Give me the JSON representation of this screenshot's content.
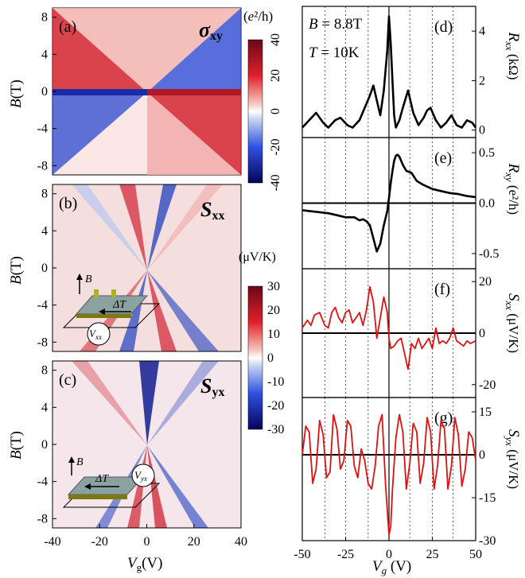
{
  "left": {
    "xlabel_main": "V",
    "xlabel_sub": "g",
    "xlabel_unit": "(V)",
    "ylabel_main": "B",
    "ylabel_unit": "(T)",
    "ylabel_unit_c": "(T)",
    "xticks": [
      "-40",
      "-20",
      "0",
      "20",
      "40"
    ],
    "yticks": [
      "8",
      "4",
      "0",
      "-4",
      "-8"
    ],
    "panels": [
      {
        "label": "(a)",
        "title_main": "σ",
        "title_sub": "xy"
      },
      {
        "label": "(b)",
        "title_main": "S",
        "title_sub": "xx"
      },
      {
        "label": "(c)",
        "title_main": "S",
        "title_sub": "yx"
      }
    ],
    "colorbar_a": {
      "unit_open": "(",
      "unit_e": "e",
      "unit_rest": "²/h)",
      "ticks": [
        "40",
        "20",
        "0",
        "-20",
        "-40"
      ]
    },
    "colorbar_bc": {
      "unit": "(μV/K)",
      "ticks": [
        "30",
        "20",
        "10",
        "0",
        "-10",
        "-20",
        "-30"
      ]
    },
    "inset_b": {
      "b": "B",
      "dt": "ΔT",
      "v": "V",
      "vsub": "xx"
    },
    "inset_c": {
      "b": "B",
      "dt": "ΔT",
      "v": "V",
      "vsub": "yx"
    }
  },
  "right": {
    "annot_B": "B",
    "annot_B_val": " = 8.8T",
    "annot_T": "T",
    "annot_T_val": " = 10K",
    "xticks": [
      "-50",
      "-25",
      "0",
      "25",
      "50"
    ],
    "xlabel_main": "V",
    "xlabel_sub": "g",
    "xlabel_unit": " (V)",
    "panels": [
      {
        "label": "(d)",
        "ylab_main": "R",
        "ylab_sub": "xx",
        "ylab_unit": " (kΩ)",
        "ticks": [
          "4",
          "2",
          "0"
        ]
      },
      {
        "label": "(e)",
        "ylab_main": "R",
        "ylab_sub": "xy",
        "ylab_unit": " (e²/h)",
        "ticks": [
          "0.5",
          "0.0",
          "-0.5"
        ]
      },
      {
        "label": "(f)",
        "ylab_main": "S",
        "ylab_sub": "xx",
        "ylab_unit": " (μV/K)",
        "ticks": [
          "20",
          "0",
          "-20"
        ]
      },
      {
        "label": "(g)",
        "ylab_main": "S",
        "ylab_sub": "yx",
        "ylab_unit": " (μV/K)",
        "ticks": [
          "15",
          "0",
          "-15",
          "-30"
        ]
      }
    ]
  },
  "colors": {
    "red": "#e01010",
    "black": "#000000",
    "cmap_neg": "#0a0a7a",
    "cmap_pos": "#7a0a1a"
  },
  "chart_data": [
    {
      "type": "heatmap",
      "panel": "(a)",
      "title": "σxy",
      "xlabel": "Vg(V)",
      "ylabel": "B (T)",
      "xlim": [
        -40,
        40
      ],
      "ylim": [
        -9,
        9
      ],
      "clim": [
        -40,
        40
      ],
      "unit": "e²/h"
    },
    {
      "type": "heatmap",
      "panel": "(b)",
      "title": "Sxx",
      "xlabel": "Vg(V)",
      "ylabel": "B (T)",
      "xlim": [
        -40,
        40
      ],
      "ylim": [
        -9,
        9
      ],
      "clim": [
        -30,
        30
      ],
      "unit": "μV/K"
    },
    {
      "type": "heatmap",
      "panel": "(c)",
      "title": "Syx",
      "xlabel": "Vg(V)",
      "ylabel": "B(T)",
      "xlim": [
        -40,
        40
      ],
      "ylim": [
        -9,
        9
      ],
      "clim": [
        -30,
        30
      ],
      "unit": "μV/K"
    },
    {
      "type": "line",
      "panel": "(d)",
      "ylabel": "Rxx (kΩ)",
      "xlim": [
        -50,
        50
      ],
      "ylim": [
        -0.3,
        5
      ],
      "x": [
        -50,
        -46,
        -42,
        -38,
        -35,
        -31,
        -28,
        -24,
        -21,
        -17,
        -14,
        -11,
        -9,
        -7,
        -5,
        -3,
        -1,
        0,
        1,
        2,
        3,
        4,
        6,
        8,
        11,
        14,
        17,
        20,
        22,
        24,
        27,
        30,
        33,
        36,
        39,
        42,
        45,
        48,
        50
      ],
      "y": [
        0.1,
        0.4,
        0.7,
        0.3,
        0.1,
        0.4,
        0.5,
        0.2,
        0.1,
        0.4,
        0.9,
        1.4,
        1.8,
        1.2,
        0.6,
        1.6,
        3.2,
        4.6,
        3.5,
        2.0,
        0.6,
        0.1,
        0.4,
        0.9,
        1.6,
        0.7,
        0.2,
        0.5,
        0.8,
        0.9,
        0.4,
        0.1,
        0.3,
        0.6,
        0.2,
        0.1,
        0.4,
        0.3,
        0.1
      ]
    },
    {
      "type": "line",
      "panel": "(e)",
      "ylabel": "Rxy (e²/h)",
      "xlim": [
        -50,
        50
      ],
      "ylim": [
        -0.65,
        0.65
      ],
      "x": [
        -50,
        -45,
        -40,
        -35,
        -30,
        -25,
        -20,
        -17,
        -15,
        -13,
        -11,
        -9,
        -7,
        -5,
        -3,
        -1,
        0,
        1,
        2,
        3,
        4,
        5,
        6,
        8,
        10,
        13,
        16,
        20,
        25,
        30,
        35,
        40,
        45,
        50
      ],
      "y": [
        -0.07,
        -0.08,
        -0.09,
        -0.1,
        -0.12,
        -0.14,
        -0.14,
        -0.17,
        -0.16,
        -0.18,
        -0.22,
        -0.35,
        -0.48,
        -0.4,
        -0.22,
        -0.08,
        0.05,
        0.2,
        0.32,
        0.42,
        0.47,
        0.48,
        0.46,
        0.38,
        0.32,
        0.3,
        0.22,
        0.18,
        0.14,
        0.12,
        0.1,
        0.09,
        0.07,
        0.06
      ]
    },
    {
      "type": "line",
      "panel": "(f)",
      "ylabel": "Sxx (μV/K)",
      "xlim": [
        -50,
        50
      ],
      "ylim": [
        -25,
        25
      ],
      "x": [
        -50,
        -47,
        -45,
        -43,
        -40,
        -37,
        -35,
        -33,
        -31,
        -29,
        -27,
        -25,
        -23,
        -21,
        -19,
        -17,
        -15,
        -13,
        -11,
        -9,
        -7,
        -5,
        -3,
        -1,
        0,
        1,
        3,
        5,
        7,
        9,
        11,
        13,
        15,
        17,
        19,
        21,
        23,
        25,
        27,
        29,
        31,
        33,
        35,
        37,
        39,
        41,
        43,
        45,
        47,
        50
      ],
      "y": [
        2,
        5,
        3,
        7,
        8,
        3,
        2,
        8,
        10,
        6,
        4,
        8,
        9,
        4,
        6,
        8,
        3,
        9,
        18,
        12,
        -2,
        6,
        14,
        8,
        -2,
        -6,
        -5,
        -3,
        -2,
        -8,
        -14,
        -4,
        -6,
        -2,
        -6,
        -4,
        -2,
        -6,
        2,
        -4,
        -3,
        -4,
        -2,
        2,
        -3,
        -4,
        -5,
        -3,
        -4,
        -3
      ]
    },
    {
      "type": "line",
      "panel": "(g)",
      "ylabel": "Syx (μV/K)",
      "xlim": [
        -50,
        50
      ],
      "ylim": [
        -30,
        20
      ],
      "x": [
        -50,
        -48,
        -46,
        -44,
        -42,
        -40,
        -38,
        -36,
        -34,
        -32,
        -30,
        -28,
        -26,
        -24,
        -22,
        -20,
        -18,
        -16,
        -14,
        -12,
        -10,
        -8,
        -6,
        -4,
        -2,
        0,
        1,
        2,
        4,
        6,
        8,
        10,
        12,
        14,
        16,
        18,
        20,
        22,
        24,
        26,
        28,
        30,
        32,
        34,
        36,
        38,
        40,
        42,
        44,
        46,
        48,
        50
      ],
      "y": [
        0,
        10,
        8,
        -10,
        -5,
        12,
        7,
        -8,
        -6,
        14,
        9,
        -5,
        -2,
        12,
        10,
        -4,
        -8,
        2,
        -2,
        -10,
        -12,
        -4,
        10,
        14,
        -10,
        -28,
        -25,
        -12,
        6,
        14,
        8,
        -12,
        -3,
        11,
        8,
        -10,
        -3,
        13,
        8,
        -12,
        -4,
        12,
        9,
        -12,
        -4,
        13,
        7,
        -11,
        -5,
        8,
        6,
        -2
      ]
    }
  ]
}
